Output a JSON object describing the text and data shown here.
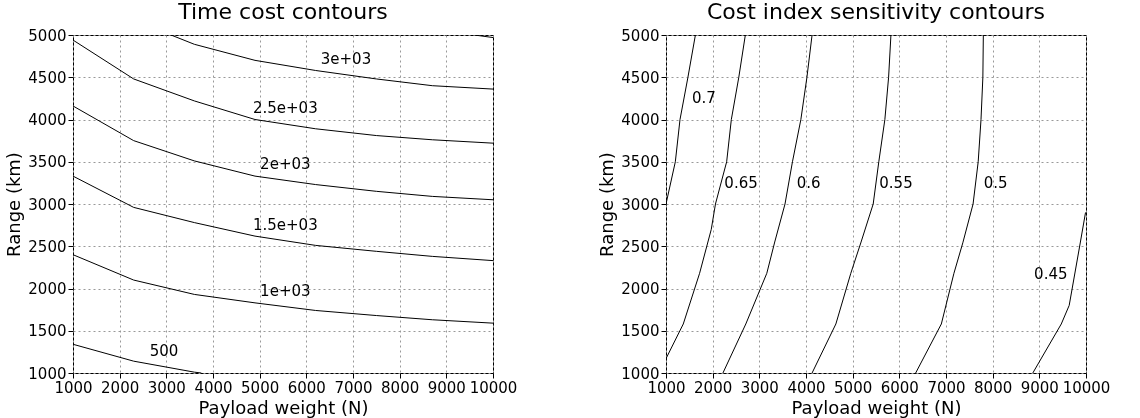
{
  "chart_data": [
    {
      "type": "line",
      "title": "Time cost contours",
      "xlabel": "Payload weight (N)",
      "ylabel": "Range (km)",
      "xlim": [
        1000,
        10000
      ],
      "ylim": [
        1000,
        5000
      ],
      "xticks": [
        1000,
        2000,
        3000,
        4000,
        5000,
        6000,
        7000,
        8000,
        9000,
        10000
      ],
      "yticks": [
        1000,
        1500,
        2000,
        2500,
        3000,
        3500,
        4000,
        4500,
        5000
      ],
      "grid": true,
      "marker": "none",
      "line_style": "solid",
      "series": [
        {
          "name": "500",
          "color": "#000000",
          "x": [
            1000,
            2300,
            3600,
            3750
          ],
          "values": [
            1340,
            1140,
            1010,
            1000
          ]
        },
        {
          "name": "1e+03",
          "color": "#000000",
          "x": [
            1000,
            2300,
            3600,
            4900,
            6200,
            7500,
            8700,
            10000
          ],
          "values": [
            2400,
            2100,
            1930,
            1830,
            1740,
            1680,
            1630,
            1590
          ]
        },
        {
          "name": "1.5e+03",
          "color": "#000000",
          "x": [
            1000,
            2300,
            3600,
            4900,
            6200,
            7500,
            8700,
            10000
          ],
          "values": [
            3330,
            2960,
            2780,
            2620,
            2510,
            2440,
            2380,
            2330
          ]
        },
        {
          "name": "2e+03",
          "color": "#000000",
          "x": [
            1000,
            2300,
            3600,
            4900,
            6200,
            7500,
            8700,
            10000
          ],
          "values": [
            4160,
            3750,
            3510,
            3330,
            3230,
            3150,
            3090,
            3050
          ]
        },
        {
          "name": "2.5e+03",
          "color": "#000000",
          "x": [
            1000,
            2300,
            3600,
            4900,
            6200,
            7500,
            8700,
            10000
          ],
          "values": [
            4940,
            4480,
            4220,
            4000,
            3890,
            3810,
            3760,
            3720
          ]
        },
        {
          "name": "3e+03",
          "color": "#000000",
          "x": [
            3100,
            3600,
            4900,
            6200,
            7500,
            8700,
            10000
          ],
          "values": [
            5000,
            4890,
            4700,
            4580,
            4480,
            4400,
            4360
          ]
        },
        {
          "color": "#000000",
          "x": [
            9600,
            10000
          ],
          "values": [
            5000,
            4970
          ]
        }
      ]
    },
    {
      "type": "line",
      "title": "Cost index sensitivity contours",
      "xlabel": "Payload weight (N)",
      "ylabel": "Range (km)",
      "xlim": [
        1000,
        10000
      ],
      "ylim": [
        1000,
        5000
      ],
      "xticks": [
        1000,
        2000,
        3000,
        4000,
        5000,
        6000,
        7000,
        8000,
        9000,
        10000
      ],
      "yticks": [
        1000,
        1500,
        2000,
        2500,
        3000,
        3500,
        4000,
        4500,
        5000
      ],
      "grid": true,
      "marker": "none",
      "line_style": "solid",
      "series": [
        {
          "name": "0.7",
          "color": "#000000",
          "x": [
            1000,
            1200,
            1300,
            1470,
            1630
          ],
          "values": [
            3000,
            3500,
            4000,
            4500,
            5000
          ]
        },
        {
          "name": "0.65",
          "color": "#000000",
          "x": [
            1000,
            1370,
            1720,
            1970,
            2060,
            2300,
            2400,
            2560,
            2700
          ],
          "values": [
            1170,
            1580,
            2180,
            2700,
            3000,
            3500,
            4000,
            4500,
            5000
          ]
        },
        {
          "name": "0.6",
          "color": "#000000",
          "x": [
            2220,
            2710,
            3160,
            3330,
            3550,
            3710,
            3890,
            4020,
            4130
          ],
          "values": [
            1000,
            1580,
            2180,
            2550,
            3000,
            3500,
            4000,
            4500,
            5000
          ]
        },
        {
          "name": "0.55",
          "color": "#000000",
          "x": [
            4130,
            4640,
            4960,
            5180,
            5440,
            5560,
            5690,
            5770,
            5820
          ],
          "values": [
            1000,
            1580,
            2180,
            2550,
            3000,
            3500,
            4000,
            4500,
            5000
          ]
        },
        {
          "name": "0.5",
          "color": "#000000",
          "x": [
            6350,
            6900,
            7170,
            7360,
            7580,
            7690,
            7750,
            7790,
            7800
          ],
          "values": [
            1000,
            1580,
            2180,
            2540,
            3000,
            3500,
            4000,
            4500,
            5000
          ]
        },
        {
          "name": "0.45",
          "color": "#000000",
          "x": [
            8860,
            9470,
            9640,
            9880,
            9990
          ],
          "values": [
            1000,
            1580,
            1800,
            2550,
            2900
          ]
        }
      ]
    }
  ]
}
